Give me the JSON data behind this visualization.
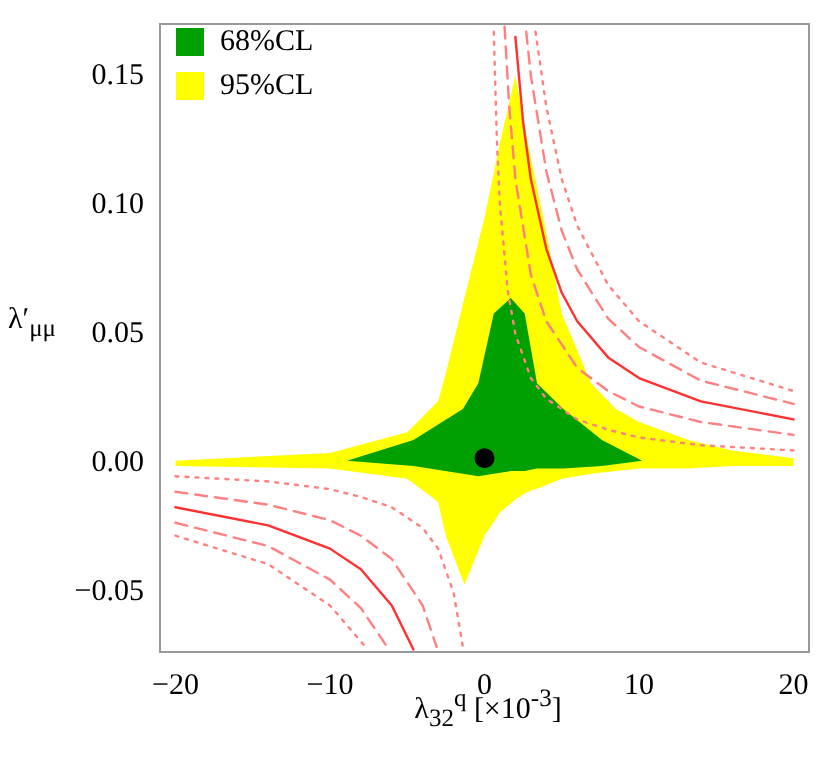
{
  "chart_data": {
    "type": "line",
    "xlabel": "λ$_{32}$$^{q}$ [×10$^{-3}$]",
    "ylabel": "λ′$_{μμ}$",
    "xlim": [
      -21,
      21
    ],
    "ylim": [
      -0.073,
      0.17
    ],
    "xticks": [
      {
        "value": -20,
        "label": "−20"
      },
      {
        "value": -10,
        "label": "−10"
      },
      0,
      10,
      20
    ],
    "yticks": [
      {
        "value": -0.05,
        "label": "−0.05"
      },
      {
        "value": 0,
        "label": "0.00"
      },
      {
        "value": 0.05,
        "label": "0.05"
      },
      {
        "value": 0.1,
        "label": "0.10"
      },
      {
        "value": 0.15,
        "label": "0.15"
      }
    ],
    "legend": "top left",
    "series": [
      {
        "name": "95%CL",
        "type": "area",
        "color": "#ffff00",
        "x": [
          -20,
          -10,
          -5,
          -3,
          -2.5,
          -1.3,
          0,
          1,
          2,
          2.8,
          3.8,
          5,
          6.9,
          8.5,
          10,
          13.2,
          16,
          20,
          20,
          16,
          13.2,
          10,
          8.5,
          6.9,
          5,
          3.8,
          2.8,
          2,
          1,
          0,
          -1.3,
          -2.5,
          -3,
          -5,
          -10,
          -20
        ],
        "values": [
          0.001,
          0.004,
          0.012,
          0.024,
          0.035,
          0.064,
          0.095,
          0.124,
          0.15,
          0.124,
          0.095,
          0.058,
          0.031,
          0.021,
          0.016,
          0.009,
          0.005,
          0.002,
          -0.001,
          -0.001,
          -0.002,
          -0.002,
          -0.003,
          -0.004,
          -0.006,
          -0.009,
          -0.011,
          -0.014,
          -0.019,
          -0.028,
          -0.047,
          -0.028,
          -0.015,
          -0.006,
          -0.002,
          -0.001
        ]
      },
      {
        "name": "68%CL",
        "type": "area",
        "color": "#00a000",
        "x": [
          -8.9,
          -4.6,
          -1.4,
          -0.4,
          0.6,
          1.7,
          2.6,
          3.4,
          5.1,
          7.6,
          10.2,
          7.6,
          5.1,
          3.4,
          2.6,
          1.7,
          0.6,
          -0.4,
          -1.4,
          -4.6
        ],
        "values": [
          0.001,
          0.009,
          0.021,
          0.031,
          0.058,
          0.064,
          0.058,
          0.031,
          0.021,
          0.009,
          0.001,
          -0.001,
          -0.002,
          -0.002,
          -0.003,
          -0.003,
          -0.004,
          -0.005,
          -0.004,
          -0.001
        ]
      },
      {
        "type": "line",
        "color": "#ff8080",
        "line_style": "dotted",
        "x": [
          0.6,
          0.8,
          1,
          1.5,
          2,
          3,
          4,
          6,
          8,
          10,
          14,
          20
        ],
        "values": [
          0.167,
          0.125,
          0.1,
          0.067,
          0.05,
          0.033,
          0.025,
          0.017,
          0.013,
          0.01,
          0.007,
          0.005
        ]
      },
      {
        "type": "line",
        "color": "#ff8080",
        "line_style": "dashed",
        "x": [
          1.3,
          1.6,
          2,
          3,
          4,
          6,
          8,
          10,
          14,
          20
        ],
        "values": [
          0.169,
          0.138,
          0.11,
          0.073,
          0.055,
          0.037,
          0.028,
          0.022,
          0.016,
          0.011
        ]
      },
      {
        "type": "line",
        "color": "#ff3030",
        "line_style": "solid",
        "x": [
          2,
          2.5,
          3,
          4,
          5,
          6,
          8,
          10,
          14,
          20
        ],
        "values": [
          0.165,
          0.132,
          0.11,
          0.083,
          0.066,
          0.055,
          0.041,
          0.033,
          0.024,
          0.017
        ]
      },
      {
        "type": "line",
        "color": "#ff8080",
        "line_style": "dashed",
        "x": [
          2.7,
          3,
          4,
          5,
          6,
          8,
          10,
          14,
          20
        ],
        "values": [
          0.167,
          0.15,
          0.113,
          0.09,
          0.075,
          0.056,
          0.045,
          0.032,
          0.023
        ]
      },
      {
        "type": "line",
        "color": "#ff8080",
        "line_style": "dotted",
        "x": [
          3.3,
          4,
          5,
          6,
          8,
          10,
          14,
          20
        ],
        "values": [
          0.167,
          0.138,
          0.11,
          0.092,
          0.069,
          0.055,
          0.039,
          0.028
        ]
      },
      {
        "type": "line",
        "color": "#ff8080",
        "line_style": "dotted",
        "x": [
          -20,
          -14,
          -10,
          -8,
          -6,
          -4,
          -3,
          -2,
          -1.4
        ],
        "values": [
          -0.005,
          -0.007,
          -0.01,
          -0.013,
          -0.017,
          -0.025,
          -0.033,
          -0.05,
          -0.071
        ]
      },
      {
        "type": "line",
        "color": "#ff8080",
        "line_style": "dashed",
        "x": [
          -20,
          -14,
          -10,
          -8,
          -6,
          -4,
          -3.1
        ],
        "values": [
          -0.011,
          -0.016,
          -0.022,
          -0.028,
          -0.037,
          -0.055,
          -0.071
        ]
      },
      {
        "type": "line",
        "color": "#ff3030",
        "line_style": "solid",
        "x": [
          -20,
          -14,
          -10,
          -8,
          -6,
          -4.6
        ],
        "values": [
          -0.017,
          -0.024,
          -0.033,
          -0.041,
          -0.055,
          -0.072
        ]
      },
      {
        "type": "line",
        "color": "#ff8080",
        "line_style": "dashed",
        "x": [
          -20,
          -14,
          -10,
          -8,
          -6.3
        ],
        "values": [
          -0.023,
          -0.032,
          -0.045,
          -0.056,
          -0.071
        ]
      },
      {
        "type": "line",
        "color": "#ff8080",
        "line_style": "dotted",
        "x": [
          -20,
          -14,
          -10,
          -7.7
        ],
        "values": [
          -0.028,
          -0.039,
          -0.055,
          -0.071
        ]
      },
      {
        "type": "scatter",
        "color": "#000000",
        "marker": "circle",
        "x": [
          0
        ],
        "values": [
          0.002
        ]
      }
    ]
  }
}
